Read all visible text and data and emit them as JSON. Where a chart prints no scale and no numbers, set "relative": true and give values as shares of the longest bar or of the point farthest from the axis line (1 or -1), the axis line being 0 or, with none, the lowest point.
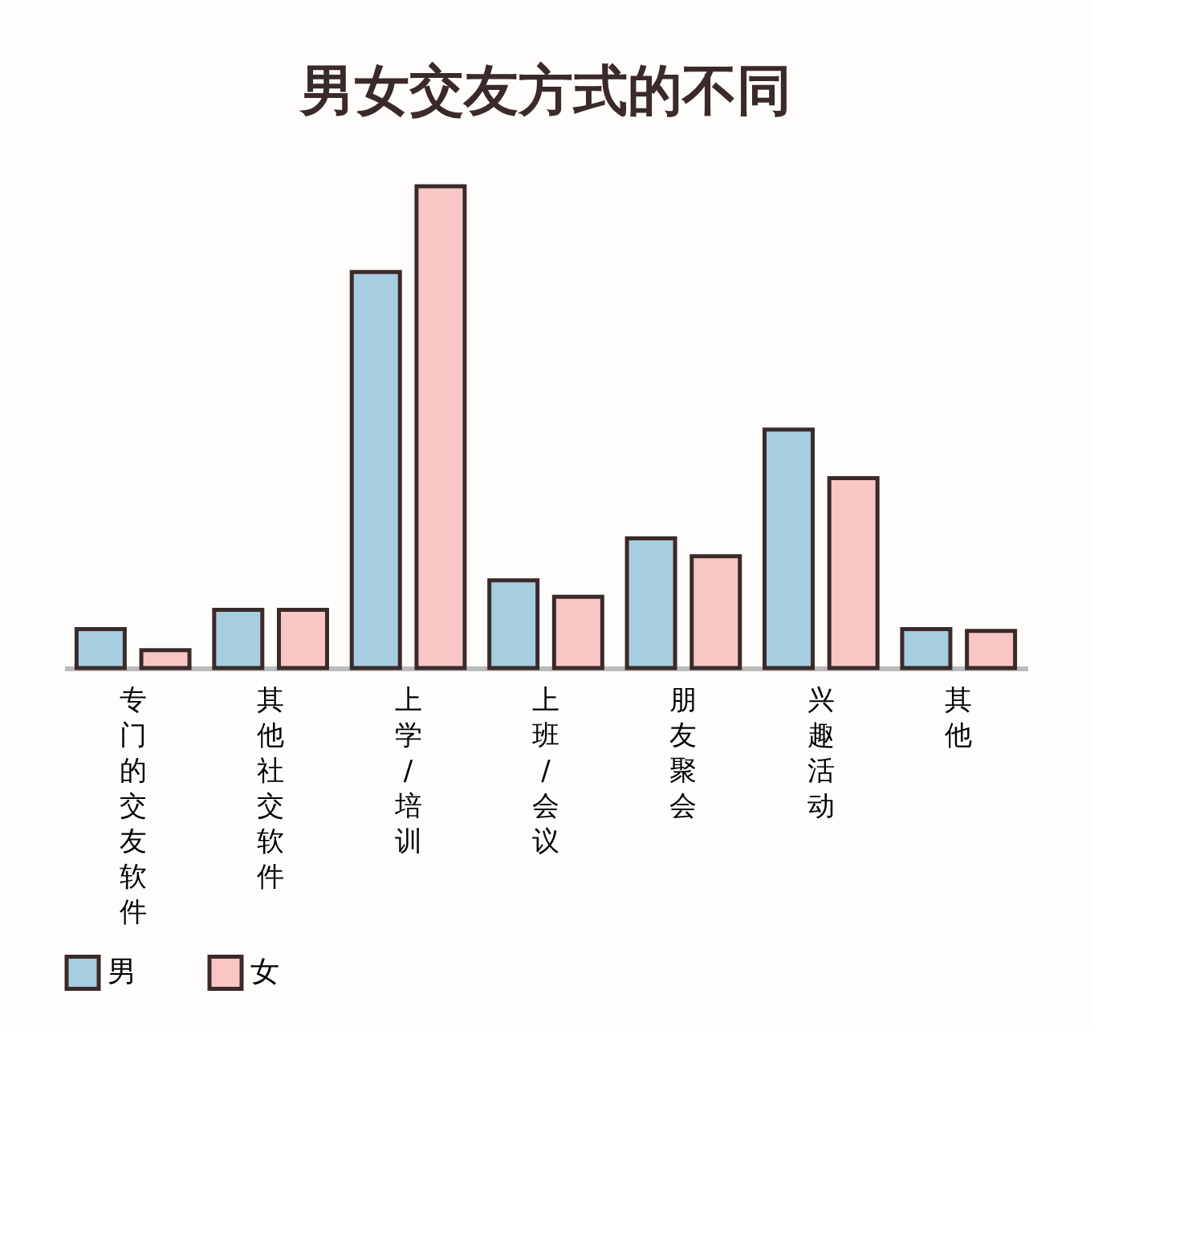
{
  "chart_data": {
    "type": "bar",
    "title": "男女交友方式的不同",
    "relative": true,
    "categories": [
      "专门的交友软件",
      "其他社交软件",
      "上学/培训",
      "上班/会议",
      "朋友聚会",
      "兴趣活动",
      "其他"
    ],
    "series": [
      {
        "name": "男",
        "color": "#a6cde0",
        "values": [
          0.081,
          0.121,
          0.822,
          0.182,
          0.269,
          0.495,
          0.081
        ]
      },
      {
        "name": "女",
        "color": "#f9c6c6",
        "values": [
          0.037,
          0.121,
          1,
          0.148,
          0.232,
          0.394,
          0.077
        ]
      }
    ],
    "legend": "bottom"
  }
}
